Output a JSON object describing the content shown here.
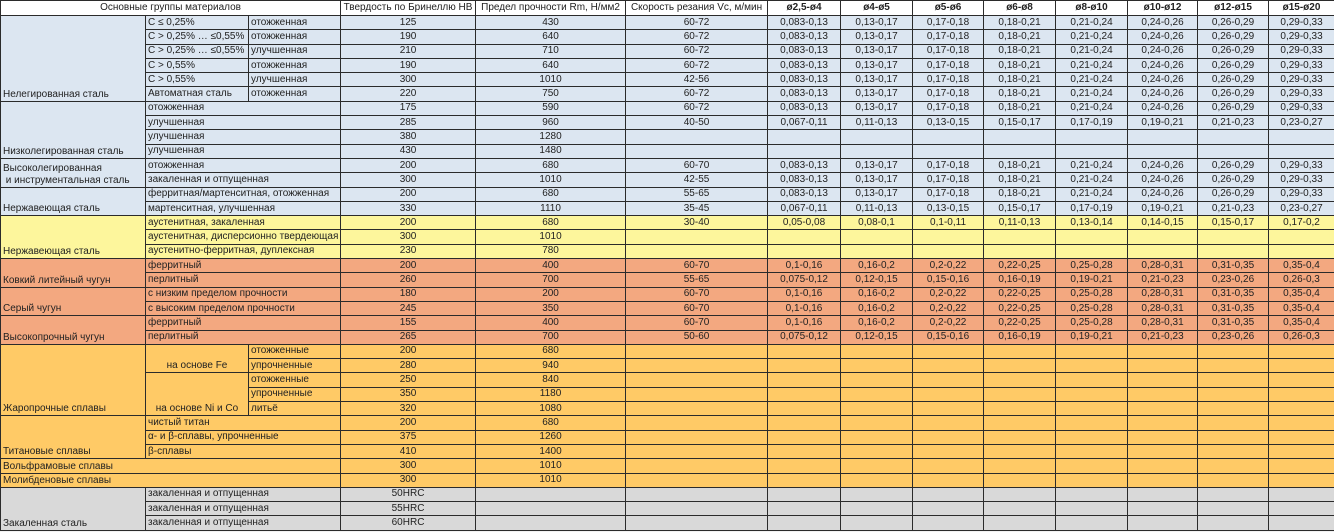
{
  "header": {
    "groups": "Основные группы материалов",
    "hardness": "Твердость по Бринеллю HB",
    "strength": "Предел прочности Rm, Н/мм2",
    "speed": "Скорость резания Vc, м/мин",
    "diameters": [
      "ø2,5-ø4",
      "ø4-ø5",
      "ø5-ø6",
      "ø6-ø8",
      "ø8-ø10",
      "ø10-ø12",
      "ø12-ø15",
      "ø15-ø20"
    ]
  },
  "colors": {
    "blue": "#dce6f1",
    "yellow": "#fdf69c",
    "salmon": "#f3a880",
    "orange": "#ffca66",
    "grey": "#d9d9d9"
  },
  "groups": [
    {
      "name": "Нелегированная сталь",
      "color": "blue",
      "rows": [
        {
          "sub": "C ≤ 0,25%",
          "cond": "отожженная",
          "hb": "125",
          "rm": "430",
          "vc": "60-72",
          "f": [
            "0,083-0,13",
            "0,13-0,17",
            "0,17-0,18",
            "0,18-0,21",
            "0,21-0,24",
            "0,24-0,26",
            "0,26-0,29",
            "0,29-0,33"
          ]
        },
        {
          "sub": "C > 0,25% … ≤0,55%",
          "cond": "отожженная",
          "hb": "190",
          "rm": "640",
          "vc": "60-72",
          "f": [
            "0,083-0,13",
            "0,13-0,17",
            "0,17-0,18",
            "0,18-0,21",
            "0,21-0,24",
            "0,24-0,26",
            "0,26-0,29",
            "0,29-0,33"
          ]
        },
        {
          "sub": "C > 0,25% … ≤0,55%",
          "cond": "улучшенная",
          "hb": "210",
          "rm": "710",
          "vc": "60-72",
          "f": [
            "0,083-0,13",
            "0,13-0,17",
            "0,17-0,18",
            "0,18-0,21",
            "0,21-0,24",
            "0,24-0,26",
            "0,26-0,29",
            "0,29-0,33"
          ]
        },
        {
          "sub": "C > 0,55%",
          "cond": "отожженная",
          "hb": "190",
          "rm": "640",
          "vc": "60-72",
          "f": [
            "0,083-0,13",
            "0,13-0,17",
            "0,17-0,18",
            "0,18-0,21",
            "0,21-0,24",
            "0,24-0,26",
            "0,26-0,29",
            "0,29-0,33"
          ]
        },
        {
          "sub": "C > 0,55%",
          "cond": "улучшенная",
          "hb": "300",
          "rm": "1010",
          "vc": "42-56",
          "f": [
            "0,083-0,13",
            "0,13-0,17",
            "0,17-0,18",
            "0,18-0,21",
            "0,21-0,24",
            "0,24-0,26",
            "0,26-0,29",
            "0,29-0,33"
          ]
        },
        {
          "sub": "Автоматная сталь",
          "cond": "отожженная",
          "hb": "220",
          "rm": "750",
          "vc": "60-72",
          "f": [
            "0,083-0,13",
            "0,13-0,17",
            "0,17-0,18",
            "0,18-0,21",
            "0,21-0,24",
            "0,24-0,26",
            "0,26-0,29",
            "0,29-0,33"
          ]
        }
      ]
    },
    {
      "name": "Низколегированная сталь",
      "color": "blue",
      "rows": [
        {
          "sub": "отожженная",
          "hb": "175",
          "rm": "590",
          "vc": "60-72",
          "f": [
            "0,083-0,13",
            "0,13-0,17",
            "0,17-0,18",
            "0,18-0,21",
            "0,21-0,24",
            "0,24-0,26",
            "0,26-0,29",
            "0,29-0,33"
          ]
        },
        {
          "sub": "улучшенная",
          "hb": "285",
          "rm": "960",
          "vc": "40-50",
          "f": [
            "0,067-0,11",
            "0,11-0,13",
            "0,13-0,15",
            "0,15-0,17",
            "0,17-0,19",
            "0,19-0,21",
            "0,21-0,23",
            "0,23-0,27"
          ]
        },
        {
          "sub": "улучшенная",
          "hb": "380",
          "rm": "1280",
          "vc": "",
          "f": [
            "",
            "",
            "",
            "",
            "",
            "",
            "",
            ""
          ]
        },
        {
          "sub": "улучшенная",
          "hb": "430",
          "rm": "1480",
          "vc": "",
          "f": [
            "",
            "",
            "",
            "",
            "",
            "",
            "",
            ""
          ]
        }
      ]
    },
    {
      "name": "Высоколегированная\n и инструментальная сталь",
      "color": "blue",
      "rows": [
        {
          "sub": "отожженная",
          "hb": "200",
          "rm": "680",
          "vc": "60-70",
          "f": [
            "0,083-0,13",
            "0,13-0,17",
            "0,17-0,18",
            "0,18-0,21",
            "0,21-0,24",
            "0,24-0,26",
            "0,26-0,29",
            "0,29-0,33"
          ]
        },
        {
          "sub": "закаленная и отпущенная",
          "hb": "300",
          "rm": "1010",
          "vc": "42-55",
          "f": [
            "0,083-0,13",
            "0,13-0,17",
            "0,17-0,18",
            "0,18-0,21",
            "0,21-0,24",
            "0,24-0,26",
            "0,26-0,29",
            "0,29-0,33"
          ]
        }
      ]
    },
    {
      "name": "Нержавеющая сталь",
      "color": "blue",
      "rows": [
        {
          "sub": "ферритная/мартенситная, отожженная",
          "hb": "200",
          "rm": "680",
          "vc": "55-65",
          "f": [
            "0,083-0,13",
            "0,13-0,17",
            "0,17-0,18",
            "0,18-0,21",
            "0,21-0,24",
            "0,24-0,26",
            "0,26-0,29",
            "0,29-0,33"
          ]
        },
        {
          "sub": "мартенситная, улучшенная",
          "hb": "330",
          "rm": "1110",
          "vc": "35-45",
          "f": [
            "0,067-0,11",
            "0,11-0,13",
            "0,13-0,15",
            "0,15-0,17",
            "0,17-0,19",
            "0,19-0,21",
            "0,21-0,23",
            "0,23-0,27"
          ]
        }
      ]
    },
    {
      "name": "Нержавеющая сталь",
      "color": "yellow",
      "rows": [
        {
          "sub": "аустенитная, закаленная",
          "hb": "200",
          "rm": "680",
          "vc": "30-40",
          "f": [
            "0,05-0,08",
            "0,08-0,1",
            "0,1-0,11",
            "0,11-0,13",
            "0,13-0,14",
            "0,14-0,15",
            "0,15-0,17",
            "0,17-0,2"
          ]
        },
        {
          "sub": "аустенитная, дисперсионно твердеющая",
          "hb": "300",
          "rm": "1010",
          "vc": "",
          "f": [
            "",
            "",
            "",
            "",
            "",
            "",
            "",
            ""
          ]
        },
        {
          "sub": "аустенитно-ферритная, дуплексная",
          "hb": "230",
          "rm": "780",
          "vc": "",
          "f": [
            "",
            "",
            "",
            "",
            "",
            "",
            "",
            ""
          ]
        }
      ]
    },
    {
      "name": "Ковкий литейный чугун",
      "color": "salmon",
      "rows": [
        {
          "sub": "ферритный",
          "hb": "200",
          "rm": "400",
          "vc": "60-70",
          "f": [
            "0,1-0,16",
            "0,16-0,2",
            "0,2-0,22",
            "0,22-0,25",
            "0,25-0,28",
            "0,28-0,31",
            "0,31-0,35",
            "0,35-0,4"
          ]
        },
        {
          "sub": "перлитный",
          "hb": "260",
          "rm": "700",
          "vc": "55-65",
          "f": [
            "0,075-0,12",
            "0,12-0,15",
            "0,15-0,16",
            "0,16-0,19",
            "0,19-0,21",
            "0,21-0,23",
            "0,23-0,26",
            "0,26-0,3"
          ]
        }
      ]
    },
    {
      "name": "Серый чугун",
      "color": "salmon",
      "rows": [
        {
          "sub": "с низким пределом прочности",
          "hb": "180",
          "rm": "200",
          "vc": "60-70",
          "f": [
            "0,1-0,16",
            "0,16-0,2",
            "0,2-0,22",
            "0,22-0,25",
            "0,25-0,28",
            "0,28-0,31",
            "0,31-0,35",
            "0,35-0,4"
          ]
        },
        {
          "sub": "с высоким пределом прочности",
          "hb": "245",
          "rm": "350",
          "vc": "60-70",
          "f": [
            "0,1-0,16",
            "0,16-0,2",
            "0,2-0,22",
            "0,22-0,25",
            "0,25-0,28",
            "0,28-0,31",
            "0,31-0,35",
            "0,35-0,4"
          ]
        }
      ]
    },
    {
      "name": "Высокопрочный чугун",
      "color": "salmon",
      "rows": [
        {
          "sub": "ферритный",
          "hb": "155",
          "rm": "400",
          "vc": "60-70",
          "f": [
            "0,1-0,16",
            "0,16-0,2",
            "0,2-0,22",
            "0,22-0,25",
            "0,25-0,28",
            "0,28-0,31",
            "0,31-0,35",
            "0,35-0,4"
          ]
        },
        {
          "sub": "перлитный",
          "hb": "265",
          "rm": "700",
          "vc": "50-60",
          "f": [
            "0,075-0,12",
            "0,12-0,15",
            "0,15-0,16",
            "0,16-0,19",
            "0,19-0,21",
            "0,21-0,23",
            "0,23-0,26",
            "0,26-0,3"
          ]
        }
      ]
    },
    {
      "name": "Жаропрочные сплавы",
      "color": "orange",
      "subgroups": [
        {
          "name": "на основе Fe",
          "rows": [
            {
              "cond": "отожженные",
              "hb": "200",
              "rm": "680",
              "vc": "",
              "f": [
                "",
                "",
                "",
                "",
                "",
                "",
                "",
                ""
              ]
            },
            {
              "cond": "упрочненные",
              "hb": "280",
              "rm": "940",
              "vc": "",
              "f": [
                "",
                "",
                "",
                "",
                "",
                "",
                "",
                ""
              ]
            }
          ]
        },
        {
          "name": "на основе Ni и Co",
          "rows": [
            {
              "cond": "отожженные",
              "hb": "250",
              "rm": "840",
              "vc": "",
              "f": [
                "",
                "",
                "",
                "",
                "",
                "",
                "",
                ""
              ]
            },
            {
              "cond": "упрочненные",
              "hb": "350",
              "rm": "1180",
              "vc": "",
              "f": [
                "",
                "",
                "",
                "",
                "",
                "",
                "",
                ""
              ]
            },
            {
              "cond": "литьё",
              "hb": "320",
              "rm": "1080",
              "vc": "",
              "f": [
                "",
                "",
                "",
                "",
                "",
                "",
                "",
                ""
              ]
            }
          ]
        }
      ]
    },
    {
      "name": "Титановые сплавы",
      "color": "orange",
      "rows": [
        {
          "sub": "чистый титан",
          "hb": "200",
          "rm": "680",
          "vc": "",
          "f": [
            "",
            "",
            "",
            "",
            "",
            "",
            "",
            ""
          ]
        },
        {
          "sub": "α- и β-сплавы, упрочненные",
          "hb": "375",
          "rm": "1260",
          "vc": "",
          "f": [
            "",
            "",
            "",
            "",
            "",
            "",
            "",
            ""
          ]
        },
        {
          "sub": "β-сплавы",
          "hb": "410",
          "rm": "1400",
          "vc": "",
          "f": [
            "",
            "",
            "",
            "",
            "",
            "",
            "",
            ""
          ]
        }
      ]
    },
    {
      "name": "Вольфрамовые сплавы",
      "color": "orange",
      "full": true,
      "rows": [
        {
          "hb": "300",
          "rm": "1010",
          "vc": "",
          "f": [
            "",
            "",
            "",
            "",
            "",
            "",
            "",
            ""
          ]
        }
      ]
    },
    {
      "name": "Молибденовые сплавы",
      "color": "orange",
      "full": true,
      "rows": [
        {
          "hb": "300",
          "rm": "1010",
          "vc": "",
          "f": [
            "",
            "",
            "",
            "",
            "",
            "",
            "",
            ""
          ]
        }
      ]
    },
    {
      "name": "Закаленная сталь",
      "color": "grey",
      "rows": [
        {
          "sub": "закаленная и отпущенная",
          "hb": "50HRC",
          "rm": "",
          "vc": "",
          "f": [
            "",
            "",
            "",
            "",
            "",
            "",
            "",
            ""
          ]
        },
        {
          "sub": "закаленная и отпущенная",
          "hb": "55HRC",
          "rm": "",
          "vc": "",
          "f": [
            "",
            "",
            "",
            "",
            "",
            "",
            "",
            ""
          ]
        },
        {
          "sub": "закаленная и отпущенная",
          "hb": "60HRC",
          "rm": "",
          "vc": "",
          "f": [
            "",
            "",
            "",
            "",
            "",
            "",
            "",
            ""
          ]
        }
      ]
    }
  ]
}
